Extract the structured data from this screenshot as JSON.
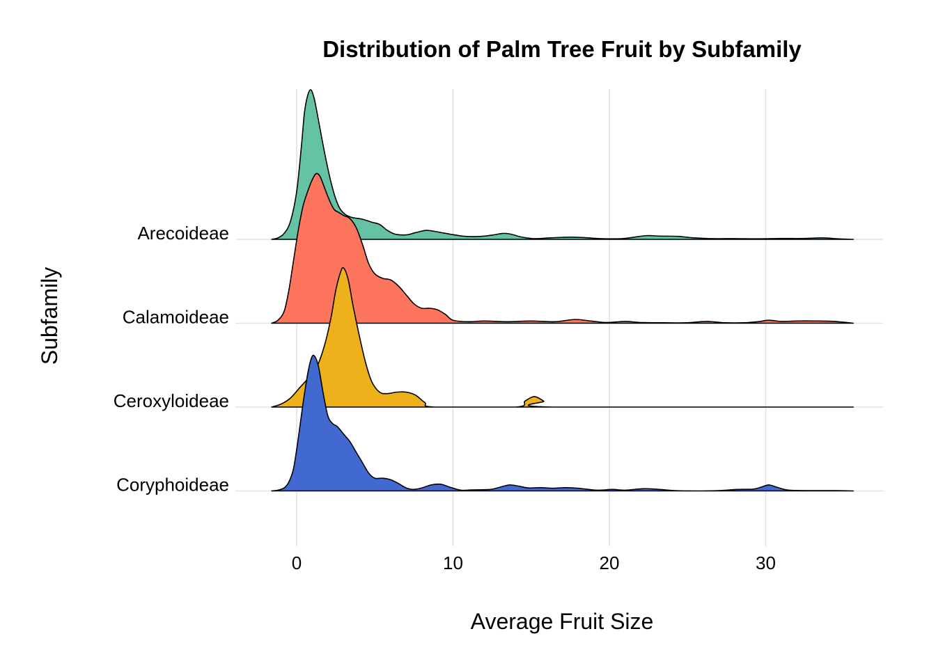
{
  "chart_data": {
    "type": "ridgeline",
    "title": "Distribution of Palm Tree Fruit by Subfamily",
    "xlabel": "Average Fruit Size",
    "ylabel": "Subfamily",
    "xlim": [
      -2.5,
      37.5
    ],
    "x_ticks": [
      0,
      10,
      20,
      30
    ],
    "x_tick_labels": [
      "0",
      "10",
      "20",
      "30"
    ],
    "grid": true,
    "legend": "none",
    "series": [
      {
        "name": "Arecoideae",
        "color": "#66c2a5",
        "density": [
          [
            -1.6,
            0
          ],
          [
            -1.2,
            0.01
          ],
          [
            -0.8,
            0.04
          ],
          [
            -0.4,
            0.12
          ],
          [
            0.0,
            0.32
          ],
          [
            0.3,
            0.62
          ],
          [
            0.5,
            0.85
          ],
          [
            0.7,
            0.96
          ],
          [
            0.9,
            1.0
          ],
          [
            1.1,
            0.95
          ],
          [
            1.3,
            0.85
          ],
          [
            1.6,
            0.68
          ],
          [
            1.9,
            0.52
          ],
          [
            2.2,
            0.38
          ],
          [
            2.5,
            0.27
          ],
          [
            2.8,
            0.2
          ],
          [
            3.2,
            0.16
          ],
          [
            3.6,
            0.145
          ],
          [
            4.2,
            0.135
          ],
          [
            4.8,
            0.115
          ],
          [
            5.3,
            0.1
          ],
          [
            5.8,
            0.06
          ],
          [
            6.3,
            0.035
          ],
          [
            7.0,
            0.03
          ],
          [
            7.6,
            0.045
          ],
          [
            8.3,
            0.06
          ],
          [
            9.0,
            0.05
          ],
          [
            9.8,
            0.035
          ],
          [
            10.8,
            0.02
          ],
          [
            11.8,
            0.02
          ],
          [
            12.6,
            0.03
          ],
          [
            13.2,
            0.04
          ],
          [
            13.7,
            0.035
          ],
          [
            14.4,
            0.015
          ],
          [
            15.2,
            0.005
          ],
          [
            16.2,
            0.01
          ],
          [
            17.4,
            0.015
          ],
          [
            18.4,
            0.012
          ],
          [
            19.4,
            0.005
          ],
          [
            20.8,
            0.005
          ],
          [
            21.6,
            0.015
          ],
          [
            22.4,
            0.025
          ],
          [
            23.2,
            0.022
          ],
          [
            24.4,
            0.02
          ],
          [
            25.4,
            0.01
          ],
          [
            26.6,
            0.005
          ],
          [
            28.0,
            0.005
          ],
          [
            29.5,
            0.004
          ],
          [
            31.0,
            0.006
          ],
          [
            32.4,
            0.006
          ],
          [
            33.6,
            0.01
          ],
          [
            34.6,
            0.004
          ],
          [
            35.6,
            0.0
          ]
        ]
      },
      {
        "name": "Calamoideae",
        "color": "#fc755c",
        "density": [
          [
            -1.6,
            0
          ],
          [
            -1.2,
            0.02
          ],
          [
            -0.8,
            0.08
          ],
          [
            -0.5,
            0.22
          ],
          [
            -0.2,
            0.42
          ],
          [
            0.1,
            0.62
          ],
          [
            0.4,
            0.78
          ],
          [
            0.7,
            0.88
          ],
          [
            1.0,
            0.96
          ],
          [
            1.25,
            1.0
          ],
          [
            1.5,
            0.98
          ],
          [
            1.8,
            0.9
          ],
          [
            2.1,
            0.82
          ],
          [
            2.4,
            0.76
          ],
          [
            2.7,
            0.74
          ],
          [
            3.0,
            0.72
          ],
          [
            3.4,
            0.7
          ],
          [
            3.8,
            0.64
          ],
          [
            4.2,
            0.53
          ],
          [
            4.6,
            0.4
          ],
          [
            5.0,
            0.33
          ],
          [
            5.5,
            0.3
          ],
          [
            6.0,
            0.29
          ],
          [
            6.5,
            0.25
          ],
          [
            7.0,
            0.19
          ],
          [
            7.5,
            0.13
          ],
          [
            8.0,
            0.1
          ],
          [
            8.5,
            0.1
          ],
          [
            9.0,
            0.09
          ],
          [
            9.5,
            0.06
          ],
          [
            10.0,
            0.02
          ],
          [
            11.0,
            0.01
          ],
          [
            12.0,
            0.015
          ],
          [
            13.5,
            0.01
          ],
          [
            15.0,
            0.015
          ],
          [
            16.5,
            0.01
          ],
          [
            17.8,
            0.025
          ],
          [
            18.8,
            0.015
          ],
          [
            19.8,
            0.005
          ],
          [
            21.0,
            0.012
          ],
          [
            22.0,
            0.005
          ],
          [
            23.5,
            0.003
          ],
          [
            25.0,
            0.003
          ],
          [
            26.2,
            0.012
          ],
          [
            27.4,
            0.003
          ],
          [
            28.6,
            0.003
          ],
          [
            29.5,
            0.01
          ],
          [
            30.2,
            0.02
          ],
          [
            31.0,
            0.012
          ],
          [
            32.0,
            0.015
          ],
          [
            33.2,
            0.015
          ],
          [
            34.4,
            0.012
          ],
          [
            35.6,
            0.0
          ]
        ]
      },
      {
        "name": "Ceroxyloideae",
        "color": "#eeb11c",
        "density": [
          [
            -1.6,
            0
          ],
          [
            -1.0,
            0.02
          ],
          [
            -0.4,
            0.06
          ],
          [
            0.2,
            0.13
          ],
          [
            0.8,
            0.2
          ],
          [
            1.3,
            0.27
          ],
          [
            1.8,
            0.42
          ],
          [
            2.2,
            0.6
          ],
          [
            2.5,
            0.78
          ],
          [
            2.8,
            0.9
          ],
          [
            3.0,
            0.93
          ],
          [
            3.3,
            0.85
          ],
          [
            3.6,
            0.68
          ],
          [
            4.0,
            0.48
          ],
          [
            4.4,
            0.3
          ],
          [
            4.8,
            0.17
          ],
          [
            5.3,
            0.1
          ],
          [
            5.8,
            0.09
          ],
          [
            6.4,
            0.1
          ],
          [
            7.0,
            0.1
          ],
          [
            7.6,
            0.08
          ],
          [
            8.2,
            0.03
          ],
          [
            8.8,
            0.0
          ],
          [
            14.0,
            0.0
          ],
          [
            14.6,
            0.04
          ],
          [
            15.2,
            0.07
          ],
          [
            15.8,
            0.04
          ],
          [
            16.4,
            0.0
          ],
          [
            35.6,
            0.0
          ]
        ]
      },
      {
        "name": "Coryphoideae",
        "color": "#4169d0",
        "density": [
          [
            -1.6,
            0
          ],
          [
            -1.2,
            0.005
          ],
          [
            -0.8,
            0.02
          ],
          [
            -0.5,
            0.06
          ],
          [
            -0.2,
            0.15
          ],
          [
            0.1,
            0.35
          ],
          [
            0.4,
            0.58
          ],
          [
            0.7,
            0.78
          ],
          [
            0.95,
            0.89
          ],
          [
            1.15,
            0.9
          ],
          [
            1.4,
            0.83
          ],
          [
            1.7,
            0.65
          ],
          [
            2.0,
            0.5
          ],
          [
            2.3,
            0.45
          ],
          [
            2.6,
            0.43
          ],
          [
            3.0,
            0.38
          ],
          [
            3.4,
            0.33
          ],
          [
            3.8,
            0.26
          ],
          [
            4.2,
            0.19
          ],
          [
            4.6,
            0.12
          ],
          [
            5.0,
            0.085
          ],
          [
            5.5,
            0.085
          ],
          [
            6.0,
            0.075
          ],
          [
            6.5,
            0.05
          ],
          [
            7.0,
            0.02
          ],
          [
            7.5,
            0.01
          ],
          [
            8.0,
            0.02
          ],
          [
            8.6,
            0.04
          ],
          [
            9.2,
            0.045
          ],
          [
            9.8,
            0.025
          ],
          [
            10.5,
            0.005
          ],
          [
            11.2,
            0.007
          ],
          [
            12.4,
            0.01
          ],
          [
            13.0,
            0.025
          ],
          [
            13.6,
            0.04
          ],
          [
            14.2,
            0.032
          ],
          [
            14.8,
            0.02
          ],
          [
            15.6,
            0.022
          ],
          [
            16.4,
            0.018
          ],
          [
            17.2,
            0.022
          ],
          [
            18.0,
            0.018
          ],
          [
            19.2,
            0.005
          ],
          [
            20.2,
            0.01
          ],
          [
            21.0,
            0.005
          ],
          [
            22.2,
            0.015
          ],
          [
            23.2,
            0.01
          ],
          [
            24.2,
            0.002
          ],
          [
            25.5,
            0.0
          ],
          [
            27.0,
            0.002
          ],
          [
            28.2,
            0.01
          ],
          [
            29.2,
            0.012
          ],
          [
            29.7,
            0.025
          ],
          [
            30.2,
            0.04
          ],
          [
            30.8,
            0.022
          ],
          [
            31.5,
            0.005
          ],
          [
            33.0,
            0.002
          ],
          [
            34.5,
            0.002
          ],
          [
            35.6,
            0.0
          ]
        ]
      }
    ]
  }
}
